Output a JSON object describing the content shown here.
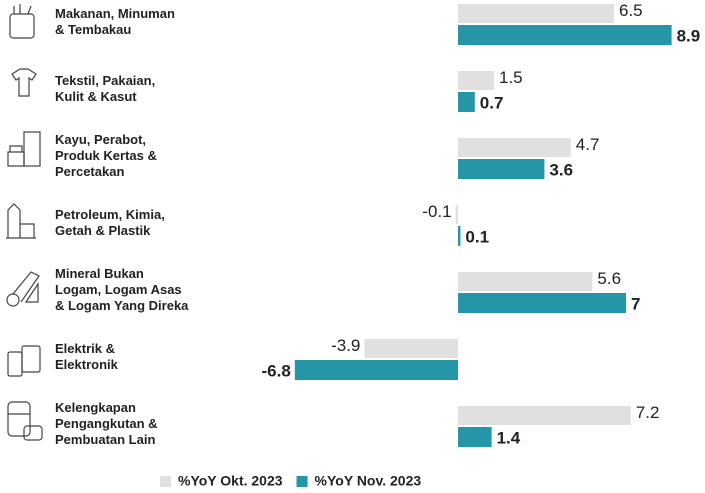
{
  "chart_data": {
    "type": "bar",
    "orientation": "horizontal",
    "categories": [
      "Makanan, Minuman\n& Tembakau",
      "Tekstil, Pakaian,\nKulit & Kasut",
      "Kayu, Perabot,\nProduk Kertas &\nPercetakan",
      "Petroleum, Kimia,\nGetah & Plastik",
      "Mineral Bukan\nLogam, Logam Asas\n& Logam Yang Direka",
      "Elektrik &\nElektronik",
      "Kelengkapan\nPengangkutan &\nPembuatan Lain"
    ],
    "series": [
      {
        "name": "%YoY Okt. 2023",
        "color": "#e0e0e0",
        "values": [
          6.5,
          1.5,
          4.7,
          -0.1,
          5.6,
          -3.9,
          7.2
        ]
      },
      {
        "name": "%YoY Nov. 2023",
        "color": "#2596a8",
        "values": [
          8.9,
          0.7,
          3.6,
          0.1,
          7.0,
          -6.8,
          1.4
        ]
      }
    ],
    "xlim": [
      -8,
      10
    ],
    "legend": "bottom"
  }
}
